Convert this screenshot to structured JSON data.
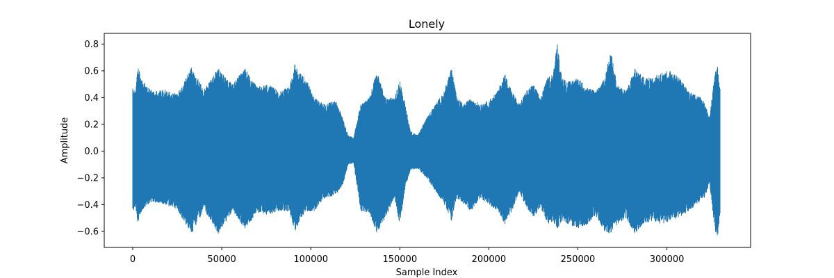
{
  "chart_data": {
    "type": "line",
    "title": "Lonely",
    "xlabel": "Sample Index",
    "ylabel": "Amplitude",
    "xlim": [
      -16000,
      347000
    ],
    "ylim": [
      -0.72,
      0.88
    ],
    "x_ticks": [
      0,
      50000,
      100000,
      150000,
      200000,
      250000,
      300000
    ],
    "x_tick_labels": [
      "0",
      "50000",
      "100000",
      "150000",
      "200000",
      "250000",
      "300000"
    ],
    "y_ticks": [
      -0.6,
      -0.4,
      -0.2,
      0.0,
      0.2,
      0.4,
      0.6,
      0.8
    ],
    "y_tick_labels": [
      "−0.6",
      "−0.4",
      "−0.2",
      "0.0",
      "0.2",
      "0.4",
      "0.6",
      "0.8"
    ],
    "grid": false,
    "legend": "none",
    "series": [
      {
        "color": "#1f77b4",
        "x_start": 0,
        "x_end": 330000,
        "envelope_x": [
          0,
          1500,
          3000,
          5000,
          8000,
          12000,
          18000,
          25000,
          33000,
          40000,
          48000,
          56000,
          63000,
          70000,
          76000,
          82000,
          88000,
          91000,
          93000,
          97000,
          102000,
          108000,
          114000,
          118000,
          121000,
          124000,
          128000,
          133000,
          137000,
          142000,
          147000,
          150000,
          153000,
          156000,
          160000,
          165000,
          170000,
          175000,
          179000,
          182000,
          186000,
          190000,
          195000,
          200000,
          205000,
          209000,
          213000,
          217000,
          221000,
          225000,
          229000,
          233000,
          236000,
          238500,
          241000,
          245000,
          250000,
          255000,
          260000,
          265000,
          268500,
          272000,
          277000,
          282000,
          287000,
          292000,
          297000,
          302000,
          307000,
          312000,
          317000,
          321000,
          324000,
          327000,
          328500,
          330000
        ],
        "envelope_max": [
          0.47,
          0.46,
          0.63,
          0.55,
          0.48,
          0.45,
          0.46,
          0.43,
          0.63,
          0.46,
          0.62,
          0.5,
          0.62,
          0.48,
          0.5,
          0.45,
          0.48,
          0.65,
          0.6,
          0.55,
          0.4,
          0.35,
          0.38,
          0.25,
          0.12,
          0.1,
          0.35,
          0.4,
          0.6,
          0.4,
          0.4,
          0.53,
          0.35,
          0.15,
          0.12,
          0.25,
          0.35,
          0.45,
          0.63,
          0.4,
          0.35,
          0.4,
          0.35,
          0.38,
          0.45,
          0.58,
          0.45,
          0.35,
          0.45,
          0.5,
          0.4,
          0.55,
          0.58,
          0.81,
          0.55,
          0.52,
          0.55,
          0.48,
          0.45,
          0.55,
          0.75,
          0.5,
          0.45,
          0.62,
          0.55,
          0.55,
          0.6,
          0.6,
          0.55,
          0.45,
          0.42,
          0.38,
          0.25,
          0.6,
          0.64,
          0.45
        ],
        "envelope_min": [
          -0.45,
          -0.43,
          -0.54,
          -0.45,
          -0.4,
          -0.38,
          -0.4,
          -0.44,
          -0.62,
          -0.44,
          -0.62,
          -0.45,
          -0.58,
          -0.46,
          -0.48,
          -0.45,
          -0.45,
          -0.6,
          -0.55,
          -0.45,
          -0.45,
          -0.35,
          -0.33,
          -0.25,
          -0.1,
          -0.09,
          -0.45,
          -0.46,
          -0.62,
          -0.5,
          -0.35,
          -0.55,
          -0.28,
          -0.14,
          -0.13,
          -0.2,
          -0.3,
          -0.4,
          -0.52,
          -0.35,
          -0.4,
          -0.45,
          -0.35,
          -0.4,
          -0.45,
          -0.55,
          -0.45,
          -0.3,
          -0.42,
          -0.5,
          -0.42,
          -0.55,
          -0.53,
          -0.58,
          -0.52,
          -0.55,
          -0.58,
          -0.55,
          -0.48,
          -0.6,
          -0.62,
          -0.55,
          -0.5,
          -0.62,
          -0.55,
          -0.52,
          -0.55,
          -0.52,
          -0.5,
          -0.45,
          -0.4,
          -0.35,
          -0.25,
          -0.6,
          -0.65,
          -0.45
        ]
      }
    ]
  }
}
